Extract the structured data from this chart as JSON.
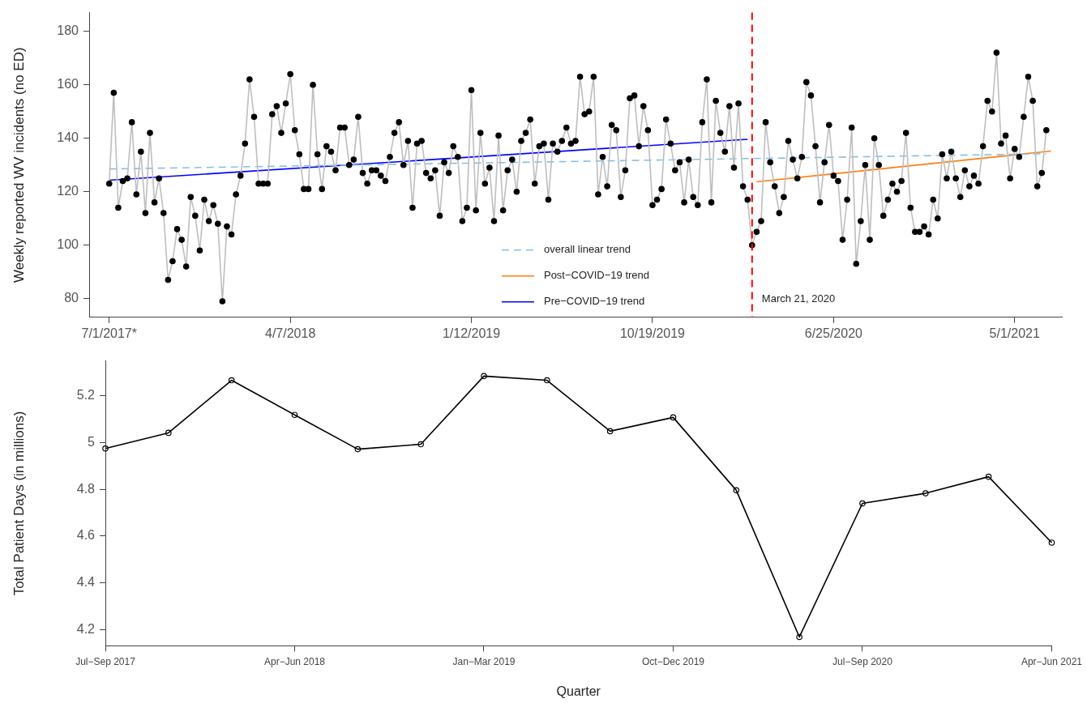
{
  "chart_data": [
    {
      "type": "line",
      "ylabel": "Weekly reported WV incidents (no ED)",
      "x": [
        "2017-07-01",
        "2017-07-08",
        "2017-07-15",
        "2017-07-22",
        "2017-07-29",
        "2017-08-05",
        "2017-08-12",
        "2017-08-19",
        "2017-08-26",
        "2017-09-02",
        "2017-09-09",
        "2017-09-16",
        "2017-09-23",
        "2017-09-30",
        "2017-10-07",
        "2017-10-14",
        "2017-10-21",
        "2017-10-28",
        "2017-11-04",
        "2017-11-11",
        "2017-11-18",
        "2017-11-25",
        "2017-12-02",
        "2017-12-09",
        "2017-12-16",
        "2017-12-23",
        "2017-12-30",
        "2018-01-06",
        "2018-01-13",
        "2018-01-20",
        "2018-01-27",
        "2018-02-03",
        "2018-02-10",
        "2018-02-17",
        "2018-02-24",
        "2018-03-03",
        "2018-03-10",
        "2018-03-17",
        "2018-03-24",
        "2018-03-31",
        "2018-04-07",
        "2018-04-14",
        "2018-04-21",
        "2018-04-28",
        "2018-05-05",
        "2018-05-12",
        "2018-05-19",
        "2018-05-26",
        "2018-06-02",
        "2018-06-09",
        "2018-06-16",
        "2018-06-23",
        "2018-06-30",
        "2018-07-07",
        "2018-07-14",
        "2018-07-21",
        "2018-07-28",
        "2018-08-04",
        "2018-08-11",
        "2018-08-18",
        "2018-08-25",
        "2018-09-01",
        "2018-09-08",
        "2018-09-15",
        "2018-09-22",
        "2018-09-29",
        "2018-10-06",
        "2018-10-13",
        "2018-10-20",
        "2018-10-27",
        "2018-11-03",
        "2018-11-10",
        "2018-11-17",
        "2018-11-24",
        "2018-12-01",
        "2018-12-08",
        "2018-12-15",
        "2018-12-22",
        "2018-12-29",
        "2019-01-05",
        "2019-01-12",
        "2019-01-19",
        "2019-01-26",
        "2019-02-02",
        "2019-02-09",
        "2019-02-16",
        "2019-02-23",
        "2019-03-02",
        "2019-03-09",
        "2019-03-16",
        "2019-03-23",
        "2019-03-30",
        "2019-04-06",
        "2019-04-13",
        "2019-04-20",
        "2019-04-27",
        "2019-05-04",
        "2019-05-11",
        "2019-05-18",
        "2019-05-25",
        "2019-06-01",
        "2019-06-08",
        "2019-06-15",
        "2019-06-22",
        "2019-06-29",
        "2019-07-06",
        "2019-07-13",
        "2019-07-20",
        "2019-07-27",
        "2019-08-03",
        "2019-08-10",
        "2019-08-17",
        "2019-08-24",
        "2019-08-31",
        "2019-09-07",
        "2019-09-14",
        "2019-09-21",
        "2019-09-28",
        "2019-10-05",
        "2019-10-12",
        "2019-10-19",
        "2019-10-26",
        "2019-11-02",
        "2019-11-09",
        "2019-11-16",
        "2019-11-23",
        "2019-11-30",
        "2019-12-07",
        "2019-12-14",
        "2019-12-21",
        "2019-12-28",
        "2020-01-04",
        "2020-01-11",
        "2020-01-18",
        "2020-01-25",
        "2020-02-01",
        "2020-02-08",
        "2020-02-15",
        "2020-02-22",
        "2020-02-29",
        "2020-03-07",
        "2020-03-14",
        "2020-03-21",
        "2020-03-28",
        "2020-04-04",
        "2020-04-11",
        "2020-04-18",
        "2020-04-25",
        "2020-05-02",
        "2020-05-09",
        "2020-05-16",
        "2020-05-23",
        "2020-05-30",
        "2020-06-06",
        "2020-06-13",
        "2020-06-20",
        "2020-06-27",
        "2020-07-04",
        "2020-07-11",
        "2020-07-18",
        "2020-07-25",
        "2020-08-01",
        "2020-08-08",
        "2020-08-15",
        "2020-08-22",
        "2020-08-29",
        "2020-09-05",
        "2020-09-12",
        "2020-09-19",
        "2020-09-26",
        "2020-10-03",
        "2020-10-10",
        "2020-10-17",
        "2020-10-24",
        "2020-10-31",
        "2020-11-07",
        "2020-11-14",
        "2020-11-21",
        "2020-11-28",
        "2020-12-05",
        "2020-12-12",
        "2020-12-19",
        "2020-12-26",
        "2021-01-02",
        "2021-01-09",
        "2021-01-16",
        "2021-01-23",
        "2021-01-30",
        "2021-02-06",
        "2021-02-13",
        "2021-02-20",
        "2021-02-27",
        "2021-03-06",
        "2021-03-13",
        "2021-03-20",
        "2021-03-27",
        "2021-04-03",
        "2021-04-10",
        "2021-04-17",
        "2021-04-24",
        "2021-05-01",
        "2021-05-08",
        "2021-05-15",
        "2021-05-22",
        "2021-05-29",
        "2021-06-05",
        "2021-06-12",
        "2021-06-19"
      ],
      "series": [
        {
          "type": "line",
          "color": "#bebebe",
          "marker": "circle",
          "values": [
            123,
            157,
            114,
            124,
            125,
            146,
            119,
            135,
            112,
            142,
            116,
            125,
            112,
            87,
            94,
            106,
            102,
            92,
            118,
            111,
            98,
            117,
            109,
            115,
            108,
            79,
            107,
            104,
            119,
            126,
            138,
            162,
            148,
            123,
            123,
            123,
            149,
            152,
            142,
            153,
            164,
            143,
            134,
            121,
            121,
            160,
            134,
            121,
            137,
            135,
            128,
            144,
            144,
            130,
            132,
            148,
            127,
            123,
            128,
            128,
            126,
            124,
            133,
            142,
            146,
            130,
            139,
            114,
            138,
            139,
            127,
            125,
            128,
            111,
            131,
            127,
            137,
            133,
            109,
            114,
            158,
            113,
            142,
            123,
            129,
            109,
            141,
            113,
            128,
            132,
            120,
            139,
            142,
            147,
            123,
            137,
            138,
            117,
            138,
            135,
            139,
            144,
            138,
            139,
            163,
            149,
            150,
            163,
            119,
            133,
            122,
            145,
            143,
            118,
            128,
            155,
            156,
            137,
            152,
            143,
            115,
            117,
            121,
            147,
            138,
            128,
            131,
            116,
            132,
            118,
            115,
            146,
            162,
            116,
            154,
            142,
            135,
            152,
            129,
            153,
            122,
            117,
            100,
            105,
            109,
            146,
            131,
            122,
            112,
            118,
            139,
            132,
            125,
            133,
            161,
            156,
            137,
            116,
            131,
            145,
            126,
            124,
            102,
            117,
            144,
            93,
            109,
            130,
            102,
            140,
            130,
            111,
            117,
            123,
            120,
            124,
            142,
            114,
            105,
            105,
            107,
            104,
            117,
            110,
            134,
            125,
            135,
            125,
            118,
            128,
            122,
            126,
            123,
            137,
            154,
            150,
            172,
            138,
            141,
            125,
            136,
            133,
            148,
            163,
            154,
            122,
            127,
            143
          ]
        },
        {
          "type": "line",
          "name": "overall linear trend",
          "color": "#87bfe8",
          "line_style": "dashed",
          "marker": "none",
          "x": [
            "2017-07-01",
            "2021-06-19"
          ],
          "values": [
            128.5,
            134.2
          ]
        },
        {
          "type": "line",
          "name": "Post−COVID−19 trend",
          "color": "#ff7f0e",
          "line_style": "solid",
          "marker": "none",
          "x": [
            "2020-03-28",
            "2021-06-26"
          ],
          "values": [
            123.7,
            135.2
          ]
        },
        {
          "type": "line",
          "name": "Pre−COVID−19 trend",
          "color": "#0000ff",
          "line_style": "solid",
          "marker": "none",
          "x": [
            "2017-07-01",
            "2020-03-14"
          ],
          "values": [
            124.3,
            139.6
          ]
        }
      ],
      "xlim": [
        "2017-05-31",
        "2021-07-13"
      ],
      "xticks": [
        {
          "value": "2017-07-01",
          "label": "7/1/2017*"
        },
        {
          "value": "2018-04-07",
          "label": "4/7/2018"
        },
        {
          "value": "2019-01-12",
          "label": "1/12/2019"
        },
        {
          "value": "2019-10-19",
          "label": "10/19/2019"
        },
        {
          "value": "2020-07-25",
          "label": "6/25/2020"
        },
        {
          "value": "2021-05-01",
          "label": "5/1/2021"
        }
      ],
      "ylim": [
        73,
        187
      ],
      "yticks": [
        80,
        100,
        120,
        140,
        160,
        180
      ],
      "ref_lines": [
        {
          "axis": "x",
          "value": "2020-03-21",
          "label": "March 21, 2020",
          "color": "#ff0000",
          "line_style": "dashed"
        }
      ],
      "legend": "bottom",
      "grid": false
    },
    {
      "type": "line",
      "xlabel": "Quarter",
      "ylabel": "Total Patient Days (in millions)",
      "categories": [
        "Jul−Sep 2017",
        null,
        null,
        "Apr−Jun 2018",
        null,
        null,
        "Jan−Mar 2019",
        null,
        null,
        "Oct−Dec 2019",
        null,
        null,
        "Jul−Sep 2020",
        null,
        null,
        "Apr−Jun 2021"
      ],
      "series": [
        {
          "type": "line",
          "color": "#000000",
          "marker": "circle",
          "values": [
            4.975,
            5.042,
            5.267,
            5.119,
            4.972,
            4.993,
            5.285,
            5.267,
            5.049,
            5.108,
            4.796,
            4.168,
            4.74,
            4.783,
            4.854,
            4.572
          ]
        }
      ],
      "ylim": [
        4.13,
        5.35
      ],
      "yticks": [
        4.2,
        4.4,
        4.6,
        4.8,
        5,
        5.2
      ],
      "grid": false
    }
  ]
}
